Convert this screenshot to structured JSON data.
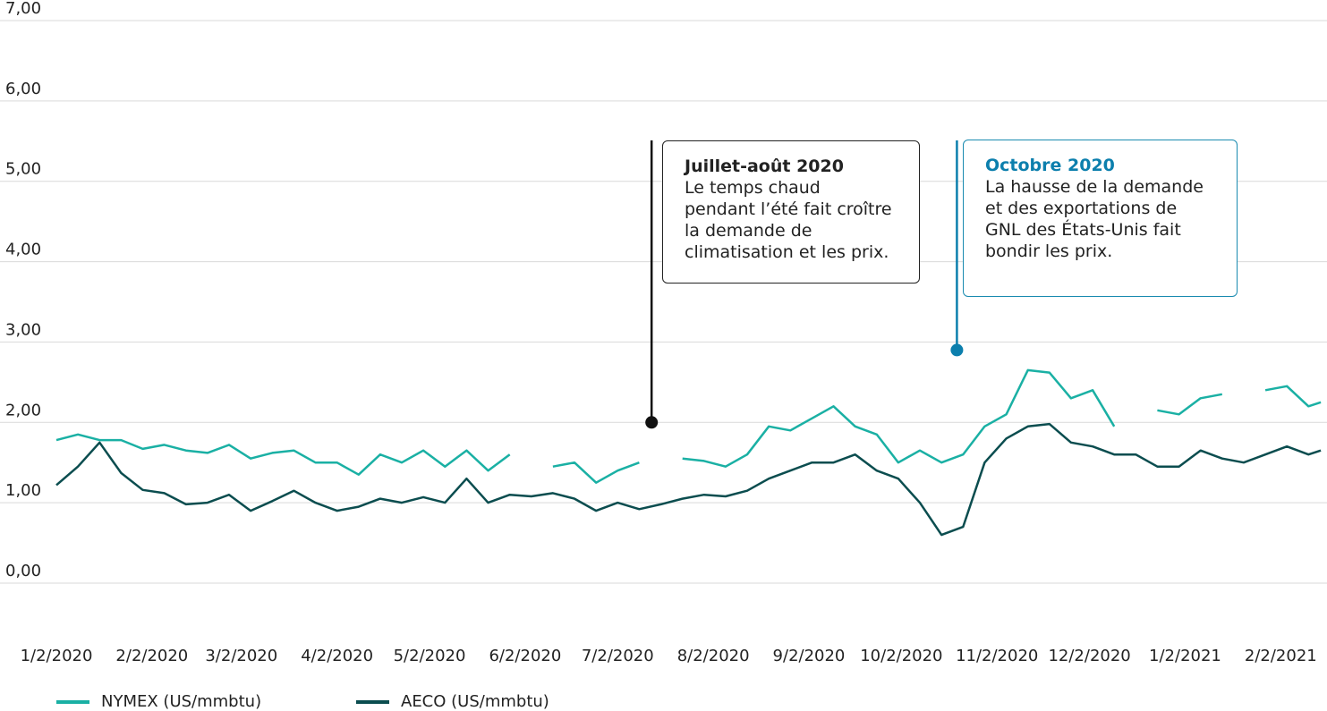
{
  "chart_data": {
    "type": "line",
    "x": [
      "2020-01-02",
      "2020-01-09",
      "2020-01-16",
      "2020-01-23",
      "2020-01-30",
      "2020-02-06",
      "2020-02-13",
      "2020-02-20",
      "2020-02-27",
      "2020-03-05",
      "2020-03-12",
      "2020-03-19",
      "2020-03-26",
      "2020-04-02",
      "2020-04-09",
      "2020-04-16",
      "2020-04-23",
      "2020-04-30",
      "2020-05-07",
      "2020-05-14",
      "2020-05-21",
      "2020-05-28",
      "2020-06-04",
      "2020-06-11",
      "2020-06-18",
      "2020-06-25",
      "2020-07-02",
      "2020-07-09",
      "2020-07-16",
      "2020-07-23",
      "2020-07-30",
      "2020-08-06",
      "2020-08-13",
      "2020-08-20",
      "2020-08-27",
      "2020-09-03",
      "2020-09-10",
      "2020-09-17",
      "2020-09-24",
      "2020-10-01",
      "2020-10-08",
      "2020-10-15",
      "2020-10-22",
      "2020-10-29",
      "2020-11-05",
      "2020-11-12",
      "2020-11-19",
      "2020-11-26",
      "2020-12-03",
      "2020-12-10",
      "2020-12-17",
      "2020-12-24",
      "2020-12-31",
      "2021-01-07",
      "2021-01-14",
      "2021-01-21",
      "2021-01-28",
      "2021-02-04",
      "2021-02-11",
      "2021-02-15"
    ],
    "series": [
      {
        "name": "NYMEX (US/mmbtu)",
        "color": "#1ab0a4",
        "values": [
          1.78,
          1.85,
          1.78,
          1.78,
          1.67,
          1.72,
          1.65,
          1.62,
          1.72,
          1.55,
          1.62,
          1.65,
          1.5,
          1.5,
          1.35,
          1.6,
          1.5,
          1.65,
          1.45,
          1.65,
          1.4,
          1.6,
          null,
          1.45,
          1.5,
          1.25,
          1.4,
          1.5,
          null,
          1.55,
          1.52,
          1.45,
          1.6,
          1.95,
          1.9,
          2.05,
          2.2,
          1.95,
          1.85,
          1.5,
          1.65,
          1.5,
          1.6,
          1.95,
          2.1,
          2.65,
          2.62,
          2.3,
          2.4,
          1.95,
          null,
          2.15,
          2.1,
          2.3,
          2.35,
          null,
          2.4,
          2.45,
          2.2,
          2.25
        ]
      },
      {
        "name": "AECO (US/mmbtu)",
        "color": "#0b4d4f",
        "values": [
          1.22,
          1.45,
          1.75,
          1.37,
          1.16,
          1.12,
          0.98,
          1.0,
          1.1,
          0.9,
          1.02,
          1.15,
          1.0,
          0.9,
          0.95,
          1.05,
          1.0,
          1.07,
          1.0,
          1.3,
          1.0,
          1.1,
          1.08,
          1.12,
          1.05,
          0.9,
          1.0,
          0.92,
          0.98,
          1.05,
          1.1,
          1.08,
          1.15,
          1.3,
          1.4,
          1.5,
          1.5,
          1.6,
          1.4,
          1.3,
          1.0,
          0.6,
          0.7,
          1.5,
          1.8,
          1.95,
          1.98,
          1.75,
          1.7,
          1.6,
          1.6,
          1.45,
          1.45,
          1.65,
          1.55,
          1.5,
          1.6,
          1.7,
          1.6,
          1.65
        ]
      }
    ],
    "xlim": [
      "2020-01-02",
      "2021-02-17"
    ],
    "xticks": [
      {
        "value": "2020-01-02",
        "label": "1/2/2020"
      },
      {
        "value": "2020-02-02",
        "label": "2/2/2020"
      },
      {
        "value": "2020-03-02",
        "label": "3/2/2020"
      },
      {
        "value": "2020-04-02",
        "label": "4/2/2020"
      },
      {
        "value": "2020-05-02",
        "label": "5/2/2020"
      },
      {
        "value": "2020-06-02",
        "label": "6/2/2020"
      },
      {
        "value": "2020-07-02",
        "label": "7/2/2020"
      },
      {
        "value": "2020-08-02",
        "label": "8/2/2020"
      },
      {
        "value": "2020-09-02",
        "label": "9/2/2020"
      },
      {
        "value": "2020-10-02",
        "label": "10/2/2020"
      },
      {
        "value": "2020-11-02",
        "label": "11/2/2020"
      },
      {
        "value": "2020-12-02",
        "label": "12/2/2020"
      },
      {
        "value": "2021-01-02",
        "label": "1/2/2021"
      },
      {
        "value": "2021-02-02",
        "label": "2/2/2021"
      }
    ],
    "ylim": [
      0,
      7
    ],
    "yticks": [
      {
        "value": 0,
        "label": "0,00"
      },
      {
        "value": 1,
        "label": "1,00"
      },
      {
        "value": 2,
        "label": "2,00"
      },
      {
        "value": 3,
        "label": "3,00"
      },
      {
        "value": 4,
        "label": "4,00"
      },
      {
        "value": 5,
        "label": "5,00"
      },
      {
        "value": 6,
        "label": "6,00"
      },
      {
        "value": 7,
        "label": "7,00"
      }
    ],
    "grid": true,
    "legend": "bottom-left",
    "annotations": [
      {
        "x": "2020-07-13",
        "y": 2.0,
        "color": "#111111",
        "title": "Juillet-août 2020",
        "lines": [
          "Le temps chaud",
          "pendant l’été fait croître",
          "la demande de",
          "climatisation et les prix."
        ]
      },
      {
        "x": "2020-10-20",
        "y": 2.9,
        "color": "#0c7fad",
        "title": "Octobre 2020",
        "lines": [
          "La hausse de la demande",
          "et des exportations de",
          "GNL des États-Unis fait",
          "bondir les prix."
        ]
      }
    ]
  }
}
